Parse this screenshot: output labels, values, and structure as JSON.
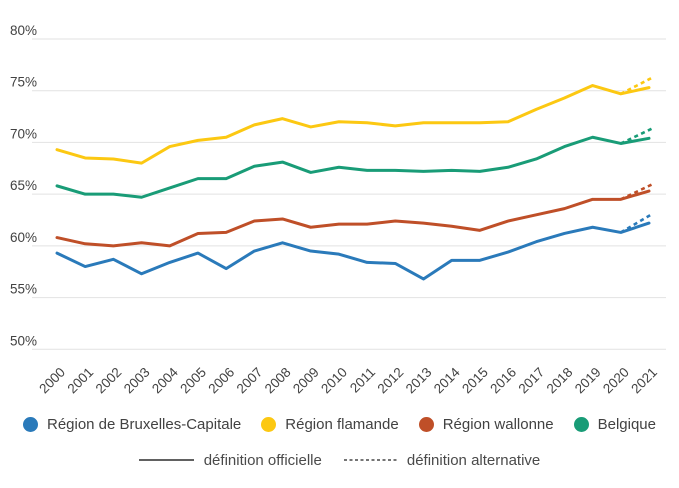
{
  "chart_data": {
    "type": "line",
    "title": "",
    "xlabel": "",
    "ylabel": "",
    "x": [
      2000,
      2001,
      2002,
      2003,
      2004,
      2005,
      2006,
      2007,
      2008,
      2009,
      2010,
      2011,
      2012,
      2013,
      2014,
      2015,
      2016,
      2017,
      2018,
      2019,
      2020,
      2021
    ],
    "ylim": [
      50,
      80
    ],
    "y_ticks": [
      80,
      75,
      70,
      65,
      60,
      55,
      50
    ],
    "y_tick_labels": [
      "80%",
      "75%",
      "70%",
      "65%",
      "60%",
      "55%",
      "50%"
    ],
    "grid": "horizontal",
    "legend_position": "bottom",
    "line_style_official": "solid",
    "line_style_alternative": "dashed",
    "series": [
      {
        "key": "bruxelles",
        "name": "Région de Bruxelles-Capitale",
        "color": "#2A7ABA",
        "definition_officielle": [
          59.3,
          58.0,
          58.7,
          57.3,
          58.4,
          59.3,
          57.8,
          59.5,
          60.3,
          59.5,
          59.2,
          58.4,
          58.3,
          56.8,
          58.6,
          58.6,
          59.4,
          60.4,
          61.2,
          61.8,
          61.3,
          62.2
        ],
        "definition_alternative_2020": 61.3,
        "definition_alternative_2021": 62.9
      },
      {
        "key": "flamande",
        "name": "Région flamande",
        "color": "#FCC812",
        "definition_officielle": [
          69.3,
          68.5,
          68.4,
          68.0,
          69.6,
          70.2,
          70.5,
          71.7,
          72.3,
          71.5,
          72.0,
          71.9,
          71.6,
          71.9,
          71.9,
          71.9,
          72.0,
          73.2,
          74.3,
          75.5,
          74.7,
          75.3
        ],
        "definition_alternative_2020": 74.7,
        "definition_alternative_2021": 76.1
      },
      {
        "key": "wallonne",
        "name": "Région wallonne",
        "color": "#BF4F28",
        "definition_officielle": [
          60.8,
          60.2,
          60.0,
          60.3,
          60.0,
          61.2,
          61.3,
          62.4,
          62.6,
          61.8,
          62.1,
          62.1,
          62.4,
          62.2,
          61.9,
          61.5,
          62.4,
          63.0,
          63.6,
          64.5,
          64.5,
          65.3
        ],
        "definition_alternative_2020": 64.5,
        "definition_alternative_2021": 65.8
      },
      {
        "key": "belgique",
        "name": "Belgique",
        "color": "#199C77",
        "definition_officielle": [
          65.8,
          65.0,
          65.0,
          64.7,
          65.6,
          66.5,
          66.5,
          67.7,
          68.1,
          67.1,
          67.6,
          67.3,
          67.3,
          67.2,
          67.3,
          67.2,
          67.6,
          68.4,
          69.6,
          70.5,
          69.9,
          70.4
        ],
        "definition_alternative_2020": 69.9,
        "definition_alternative_2021": 71.2
      }
    ]
  },
  "legend": {
    "definitions": [
      {
        "label": "définition officielle",
        "style": "solid"
      },
      {
        "label": "définition alternative",
        "style": "dashed"
      }
    ]
  }
}
